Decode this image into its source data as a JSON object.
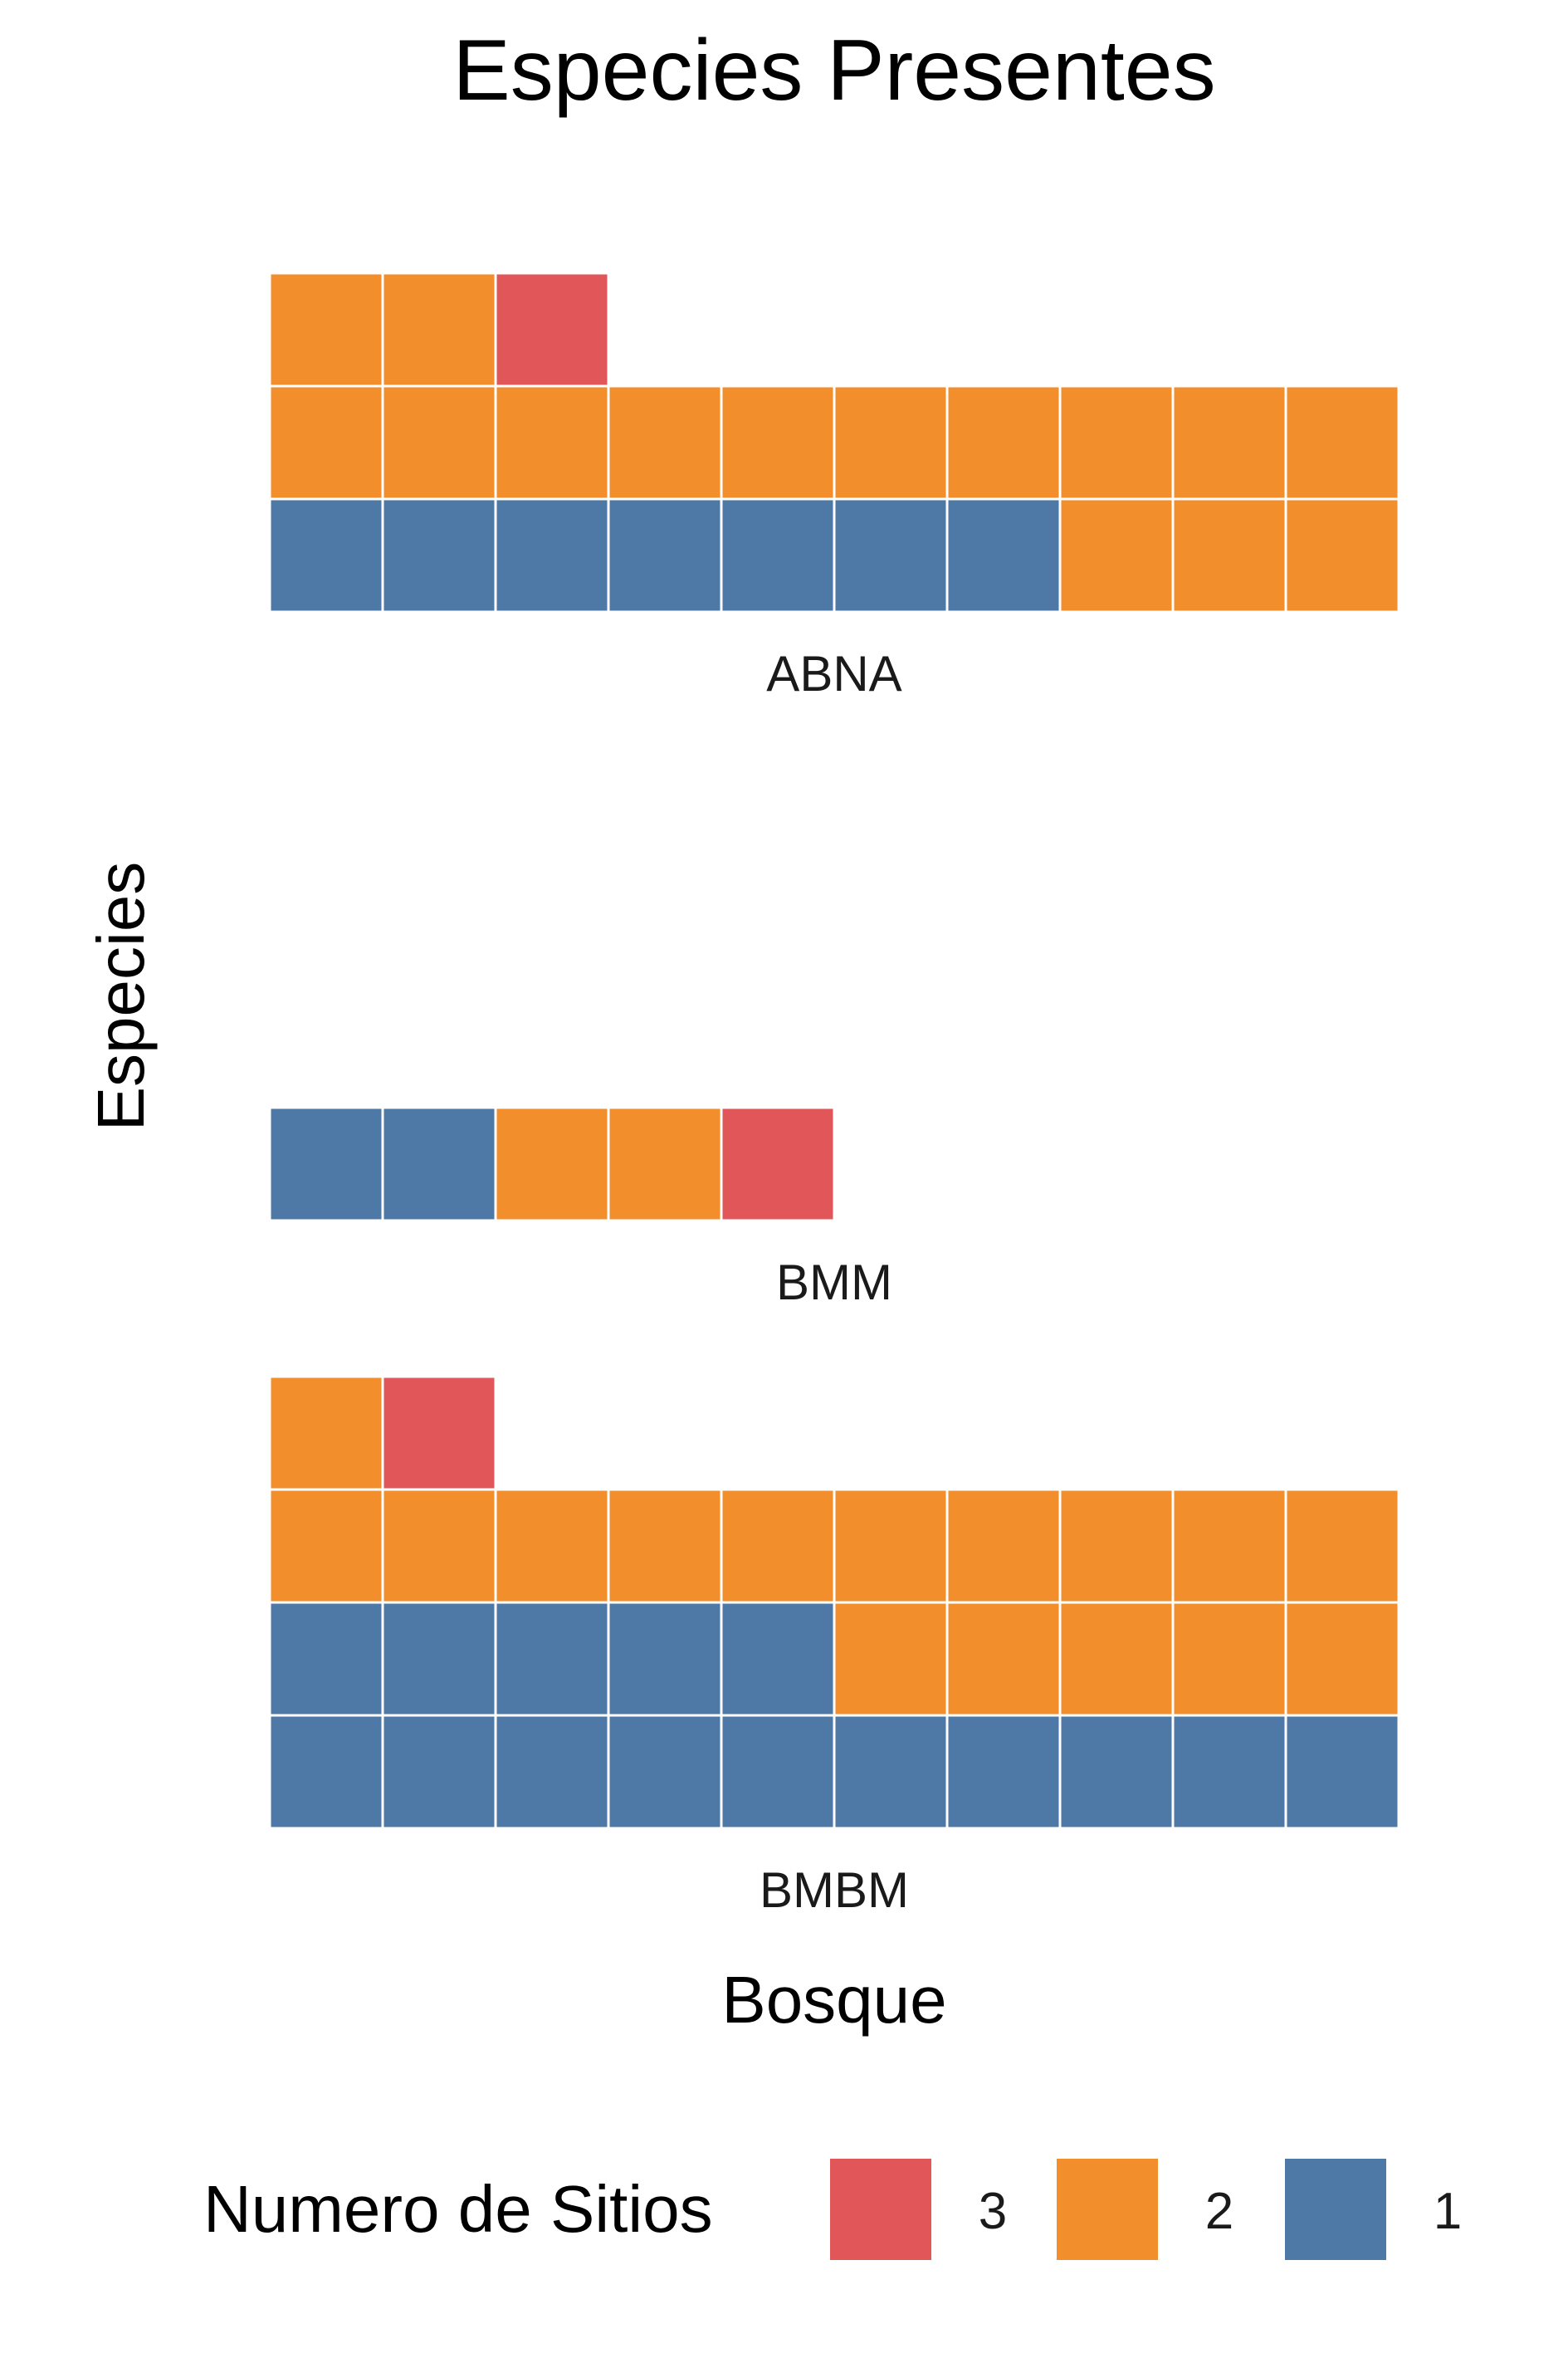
{
  "chart_data": {
    "type": "waffle",
    "title": "Especies Presentes",
    "xlabel": "Bosque",
    "ylabel": "Especies",
    "columns_per_row": 10,
    "category_order": [
      "3",
      "2",
      "1"
    ],
    "colors": {
      "3": "#E15759",
      "2": "#F28E2B",
      "1": "#4E79A7"
    },
    "panels": [
      {
        "name": "ABNA",
        "counts": {
          "1": 7,
          "2": 15,
          "3": 1
        }
      },
      {
        "name": "BMM",
        "counts": {
          "1": 2,
          "2": 2,
          "3": 1
        }
      },
      {
        "name": "BMBM",
        "counts": {
          "1": 15,
          "2": 16,
          "3": 1
        }
      }
    ],
    "legend": {
      "title": "Numero de Sitios",
      "position": "bottom",
      "items": [
        {
          "label": "3",
          "color": "#E15759"
        },
        {
          "label": "2",
          "color": "#F28E2B"
        },
        {
          "label": "1",
          "color": "#4E79A7"
        }
      ]
    }
  }
}
